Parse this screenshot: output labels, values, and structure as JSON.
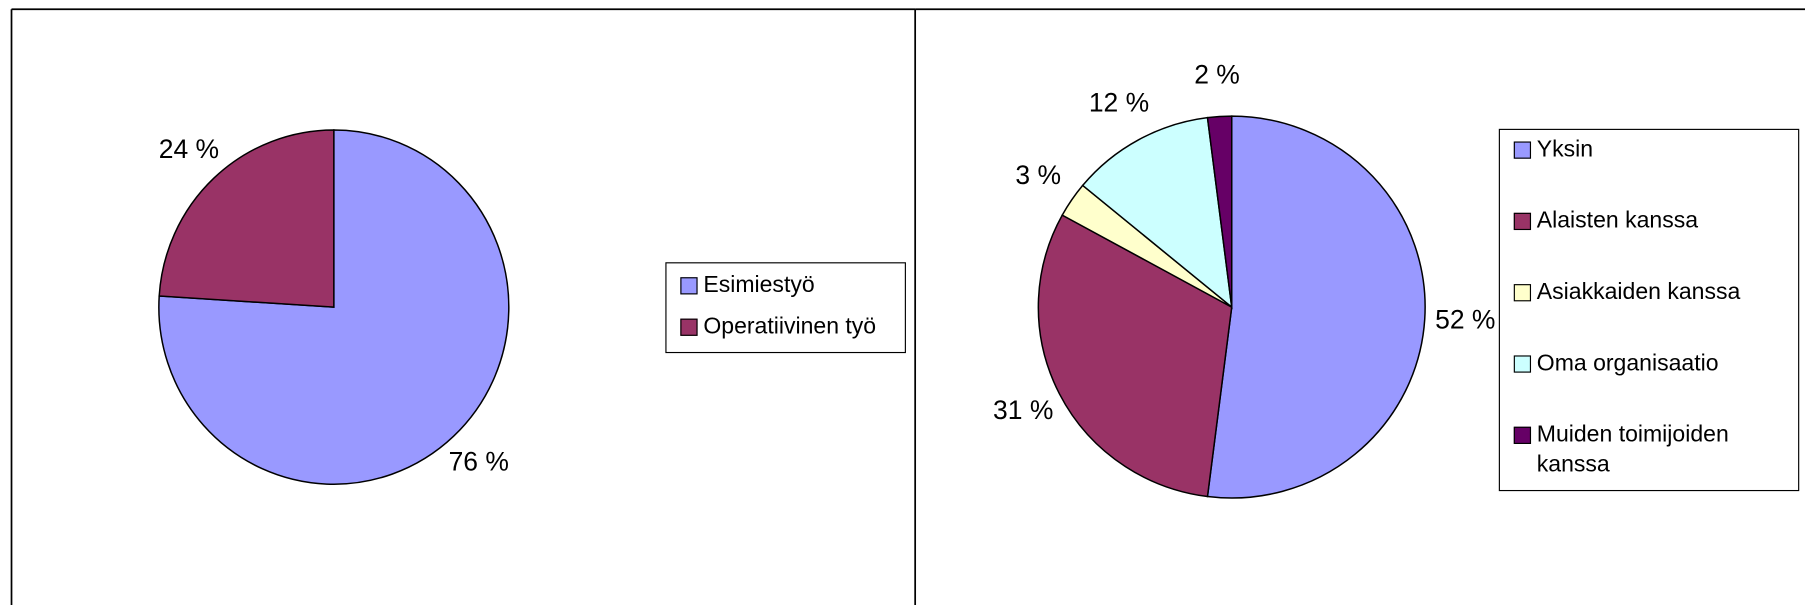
{
  "chart_data": [
    {
      "type": "pie",
      "categories": [
        "Esimiestyö",
        "Operatiivinen työ"
      ],
      "values": [
        76,
        24
      ],
      "value_labels": [
        "76 %",
        "24 %"
      ],
      "colors": [
        "#9999ff",
        "#993366"
      ]
    },
    {
      "type": "pie",
      "categories": [
        "Yksin",
        "Alaisten kanssa",
        "Asiakkaiden kanssa",
        "Oma organisaatio",
        "Muiden toimijoiden kanssa"
      ],
      "values": [
        52,
        31,
        3,
        12,
        2
      ],
      "value_labels": [
        "52 %",
        "31 %",
        "3 %",
        "12 %",
        "2 %"
      ],
      "colors": [
        "#9999ff",
        "#993366",
        "#ffffcc",
        "#ccffff",
        "#660066"
      ]
    }
  ]
}
